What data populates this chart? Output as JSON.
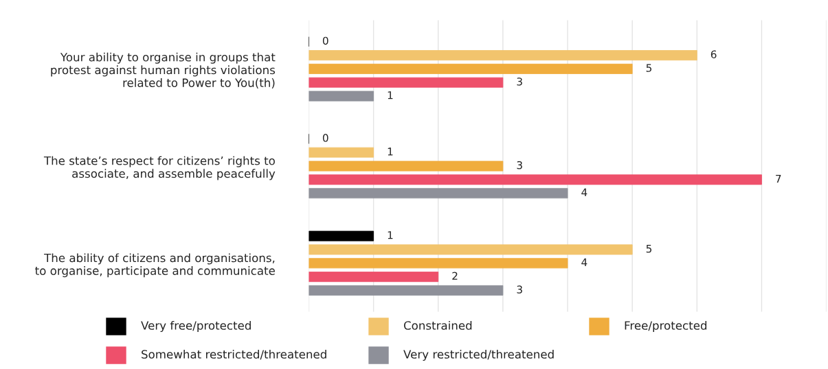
{
  "chart_data": {
    "type": "bar",
    "orientation": "horizontal",
    "categories": [
      "Your ability to organise in groups that\nprotest against human rights violations\nrelated to Power to You(th)",
      "The state’s respect for citizens’ rights to\nassociate, and assemble peacefully",
      "The ability of citizens and organisations,\nto organise, participate and communicate"
    ],
    "series": [
      {
        "name": "Very free/protected",
        "color": "#000000",
        "values": [
          0,
          0,
          1
        ]
      },
      {
        "name": "Constrained",
        "color": "#f2c46d",
        "values": [
          6,
          1,
          5
        ]
      },
      {
        "name": "Free/protected",
        "color": "#f0ad3e",
        "values": [
          5,
          3,
          4
        ]
      },
      {
        "name": "Somewhat restricted/threatened",
        "color": "#ee506b",
        "values": [
          3,
          7,
          2
        ]
      },
      {
        "name": "Very restricted/threatened",
        "color": "#8e9099",
        "values": [
          1,
          4,
          3
        ]
      }
    ],
    "xlim": [
      0,
      8
    ],
    "xticks": [
      {
        "value": 0,
        "label": null
      },
      {
        "value": 1,
        "label": null
      },
      {
        "value": 2,
        "label": null
      },
      {
        "value": 3,
        "label": null
      },
      {
        "value": 4,
        "label": null
      },
      {
        "value": 5,
        "label": null
      },
      {
        "value": 6,
        "label": null
      },
      {
        "value": 7,
        "label": null
      },
      {
        "value": 8,
        "label": null
      }
    ],
    "tick_labels": "y",
    "grid": "x",
    "data_labels": true,
    "legend": "bottom"
  }
}
